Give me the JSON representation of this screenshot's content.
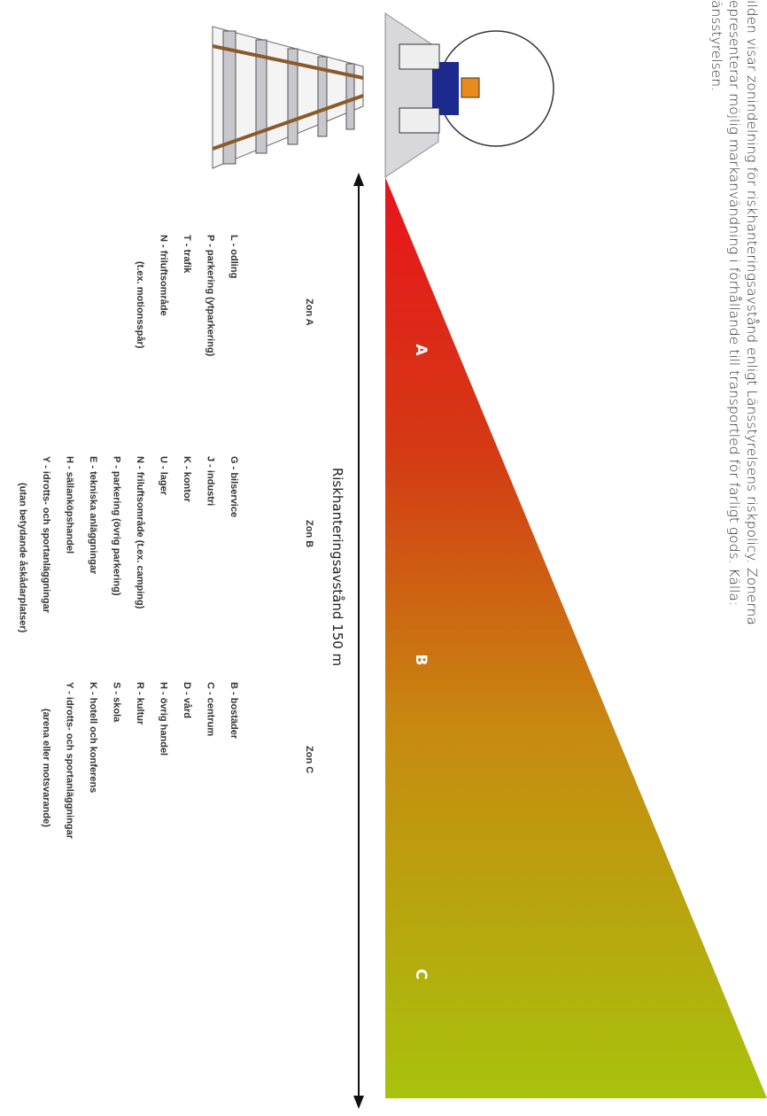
{
  "caption": {
    "lines": [
      "ilden visar zonindelning för riskhanteringsavstånd enligt Länsstyrelsens riskpolicy. Zonerna",
      "epresenterar möjlig markanvändning i förhållande till transportled för farligt gods. Källa:",
      "änsstyrelsen."
    ]
  },
  "distance_label": "Riskhanteringsavstånd 150 m",
  "zones": [
    {
      "letter": "A",
      "title": "Zon A",
      "items": [
        "L - odling",
        "P - parkering (ytparkering)",
        "T - trafik",
        "N - friluftsområde",
        "(t.ex. motionsspår)"
      ]
    },
    {
      "letter": "B",
      "title": "Zon B",
      "items": [
        "G - bilservice",
        "J - industri",
        "K - kontor",
        "U - lager",
        "N - friluftsområde (t.ex. camping)",
        "P - parkering (övrig parkering)",
        "E - tekniska anläggningar",
        "H - sällanköpshandel",
        "Y - idrotts- och sportanläggningar",
        "(utan betydande åskådarplatser)"
      ]
    },
    {
      "letter": "C",
      "title": "Zon C",
      "items": [
        "B - bostäder",
        "C - centrum",
        "D - vård",
        "H - övrig handel",
        "R - kultur",
        "S - skola",
        "K - hotell och konferens",
        "Y - idrotts- och sportanläggningar",
        "(arena eller motsvarande)"
      ]
    }
  ]
}
